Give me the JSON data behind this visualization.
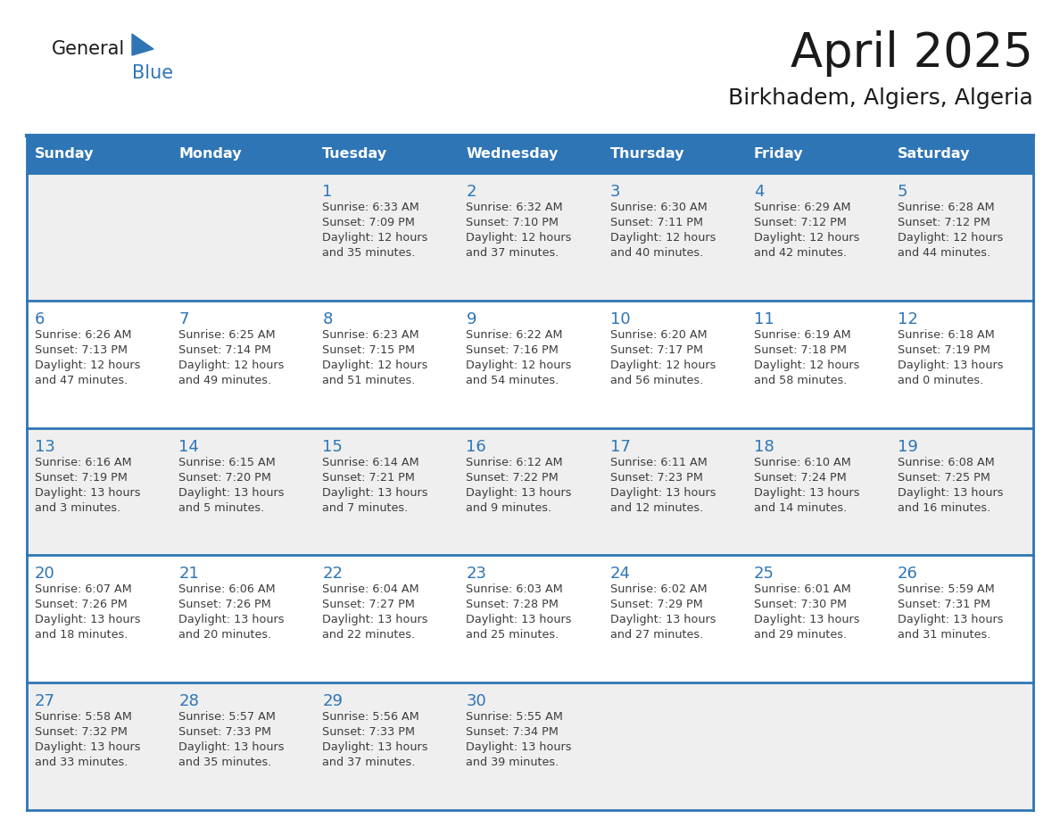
{
  "title": "April 2025",
  "subtitle": "Birkhadem, Algiers, Algeria",
  "header_color": "#2E75B6",
  "header_text_color": "#FFFFFF",
  "weekdays": [
    "Sunday",
    "Monday",
    "Tuesday",
    "Wednesday",
    "Thursday",
    "Friday",
    "Saturday"
  ],
  "bg_color": "#FFFFFF",
  "cell_bg_gray": "#EFEFEF",
  "cell_bg_white": "#FFFFFF",
  "border_color": "#2E75B6",
  "day_number_color": "#2E75B6",
  "text_color": "#3D3D3D",
  "row_backgrounds": [
    "gray",
    "white",
    "gray",
    "white",
    "gray"
  ],
  "calendar": [
    [
      {
        "day": null,
        "sunrise": null,
        "sunset": null,
        "daylight": ""
      },
      {
        "day": null,
        "sunrise": null,
        "sunset": null,
        "daylight": ""
      },
      {
        "day": 1,
        "sunrise": "6:33 AM",
        "sunset": "7:09 PM",
        "daylight": "12 hours\nand 35 minutes."
      },
      {
        "day": 2,
        "sunrise": "6:32 AM",
        "sunset": "7:10 PM",
        "daylight": "12 hours\nand 37 minutes."
      },
      {
        "day": 3,
        "sunrise": "6:30 AM",
        "sunset": "7:11 PM",
        "daylight": "12 hours\nand 40 minutes."
      },
      {
        "day": 4,
        "sunrise": "6:29 AM",
        "sunset": "7:12 PM",
        "daylight": "12 hours\nand 42 minutes."
      },
      {
        "day": 5,
        "sunrise": "6:28 AM",
        "sunset": "7:12 PM",
        "daylight": "12 hours\nand 44 minutes."
      }
    ],
    [
      {
        "day": 6,
        "sunrise": "6:26 AM",
        "sunset": "7:13 PM",
        "daylight": "12 hours\nand 47 minutes."
      },
      {
        "day": 7,
        "sunrise": "6:25 AM",
        "sunset": "7:14 PM",
        "daylight": "12 hours\nand 49 minutes."
      },
      {
        "day": 8,
        "sunrise": "6:23 AM",
        "sunset": "7:15 PM",
        "daylight": "12 hours\nand 51 minutes."
      },
      {
        "day": 9,
        "sunrise": "6:22 AM",
        "sunset": "7:16 PM",
        "daylight": "12 hours\nand 54 minutes."
      },
      {
        "day": 10,
        "sunrise": "6:20 AM",
        "sunset": "7:17 PM",
        "daylight": "12 hours\nand 56 minutes."
      },
      {
        "day": 11,
        "sunrise": "6:19 AM",
        "sunset": "7:18 PM",
        "daylight": "12 hours\nand 58 minutes."
      },
      {
        "day": 12,
        "sunrise": "6:18 AM",
        "sunset": "7:19 PM",
        "daylight": "13 hours\nand 0 minutes."
      }
    ],
    [
      {
        "day": 13,
        "sunrise": "6:16 AM",
        "sunset": "7:19 PM",
        "daylight": "13 hours\nand 3 minutes."
      },
      {
        "day": 14,
        "sunrise": "6:15 AM",
        "sunset": "7:20 PM",
        "daylight": "13 hours\nand 5 minutes."
      },
      {
        "day": 15,
        "sunrise": "6:14 AM",
        "sunset": "7:21 PM",
        "daylight": "13 hours\nand 7 minutes."
      },
      {
        "day": 16,
        "sunrise": "6:12 AM",
        "sunset": "7:22 PM",
        "daylight": "13 hours\nand 9 minutes."
      },
      {
        "day": 17,
        "sunrise": "6:11 AM",
        "sunset": "7:23 PM",
        "daylight": "13 hours\nand 12 minutes."
      },
      {
        "day": 18,
        "sunrise": "6:10 AM",
        "sunset": "7:24 PM",
        "daylight": "13 hours\nand 14 minutes."
      },
      {
        "day": 19,
        "sunrise": "6:08 AM",
        "sunset": "7:25 PM",
        "daylight": "13 hours\nand 16 minutes."
      }
    ],
    [
      {
        "day": 20,
        "sunrise": "6:07 AM",
        "sunset": "7:26 PM",
        "daylight": "13 hours\nand 18 minutes."
      },
      {
        "day": 21,
        "sunrise": "6:06 AM",
        "sunset": "7:26 PM",
        "daylight": "13 hours\nand 20 minutes."
      },
      {
        "day": 22,
        "sunrise": "6:04 AM",
        "sunset": "7:27 PM",
        "daylight": "13 hours\nand 22 minutes."
      },
      {
        "day": 23,
        "sunrise": "6:03 AM",
        "sunset": "7:28 PM",
        "daylight": "13 hours\nand 25 minutes."
      },
      {
        "day": 24,
        "sunrise": "6:02 AM",
        "sunset": "7:29 PM",
        "daylight": "13 hours\nand 27 minutes."
      },
      {
        "day": 25,
        "sunrise": "6:01 AM",
        "sunset": "7:30 PM",
        "daylight": "13 hours\nand 29 minutes."
      },
      {
        "day": 26,
        "sunrise": "5:59 AM",
        "sunset": "7:31 PM",
        "daylight": "13 hours\nand 31 minutes."
      }
    ],
    [
      {
        "day": 27,
        "sunrise": "5:58 AM",
        "sunset": "7:32 PM",
        "daylight": "13 hours\nand 33 minutes."
      },
      {
        "day": 28,
        "sunrise": "5:57 AM",
        "sunset": "7:33 PM",
        "daylight": "13 hours\nand 35 minutes."
      },
      {
        "day": 29,
        "sunrise": "5:56 AM",
        "sunset": "7:33 PM",
        "daylight": "13 hours\nand 37 minutes."
      },
      {
        "day": 30,
        "sunrise": "5:55 AM",
        "sunset": "7:34 PM",
        "daylight": "13 hours\nand 39 minutes."
      },
      {
        "day": null,
        "sunrise": null,
        "sunset": null,
        "daylight": ""
      },
      {
        "day": null,
        "sunrise": null,
        "sunset": null,
        "daylight": ""
      },
      {
        "day": null,
        "sunrise": null,
        "sunset": null,
        "daylight": ""
      }
    ]
  ]
}
